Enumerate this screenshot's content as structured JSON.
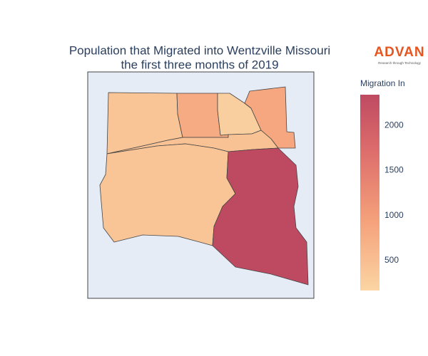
{
  "chart_data": {
    "type": "choropleth",
    "title": [
      "Population that Migrated into Wentzville Missouri",
      "the first three months of 2019"
    ],
    "colorbar_title": "Migration In",
    "values": [
      420,
      800,
      250,
      850,
      450,
      420,
      2341
    ],
    "zlim": [
      167,
      2341
    ],
    "zticks": [
      500,
      1000,
      1500,
      2000
    ],
    "colorscale": [
      [
        0,
        "#fbd5a3"
      ],
      [
        0.35,
        "#f5a27b"
      ],
      [
        0.7,
        "#de6f6c"
      ],
      [
        1,
        "#be4a62"
      ]
    ]
  },
  "logo": {
    "name": "ADVAN",
    "tagline": "Research through Technology"
  }
}
